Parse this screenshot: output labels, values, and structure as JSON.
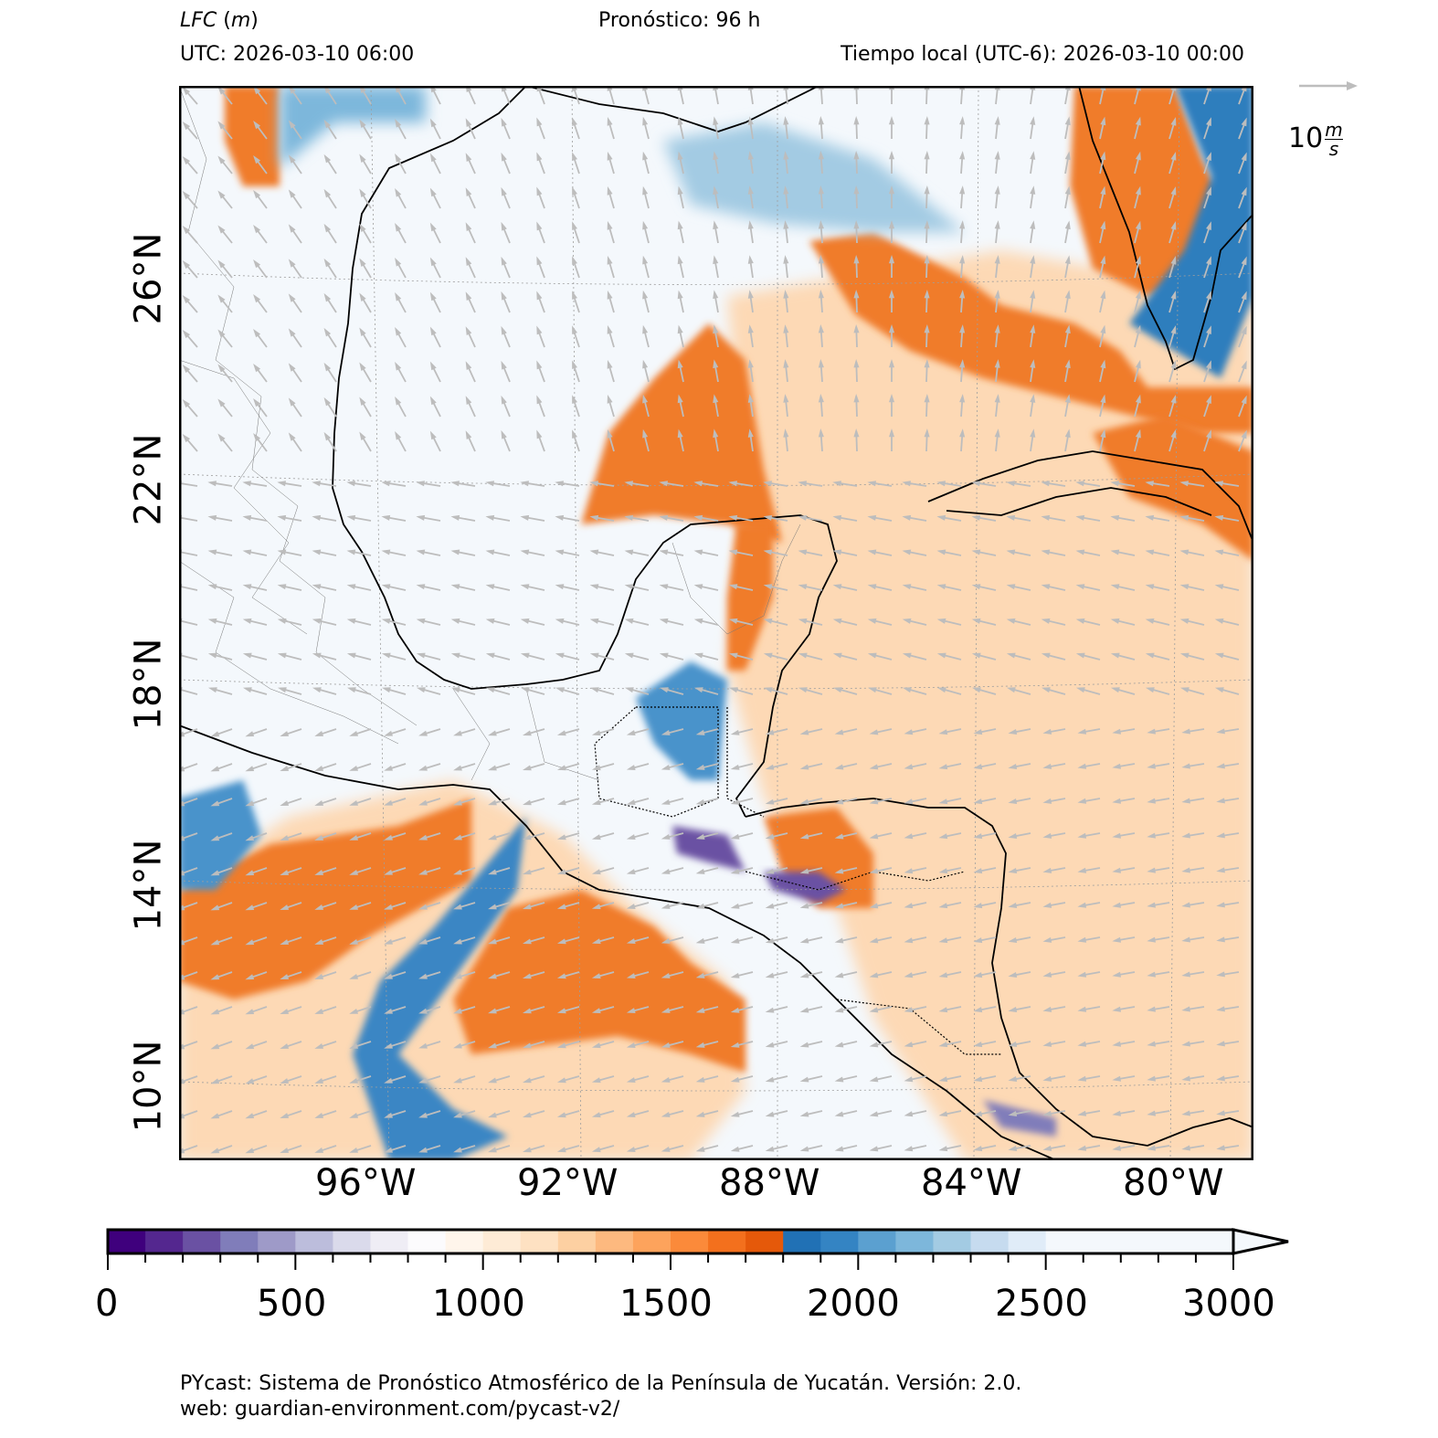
{
  "header": {
    "variable": "LFC",
    "unit": "m",
    "forecast": "Pronóstico: 96 h",
    "utc": "UTC:  2026-03-10 06:00",
    "local": "Tiempo local (UTC-6): 2026-03-10 00:00"
  },
  "wind_key": {
    "value": "10",
    "unit_num": "m",
    "unit_den": "s"
  },
  "map": {
    "lon_labels": [
      "96°W",
      "92°W",
      "88°W",
      "84°W",
      "80°W"
    ],
    "lat_labels": [
      "26°N",
      "22°N",
      "18°N",
      "14°N",
      "10°N"
    ],
    "colors": {
      "purple_dark": "#3f007d",
      "orange": "#e8661a",
      "orange_light": "#fdd0a2",
      "blue": "#2171b5",
      "blue_light": "#c6dbef",
      "background": "#f4f8fc",
      "arrow": "#bdbdbd"
    }
  },
  "colorbar": {
    "ticks": [
      "0",
      "500",
      "1000",
      "1500",
      "2000",
      "2500",
      "3000"
    ],
    "colors": [
      "#3f007d",
      "#54278f",
      "#6a51a3",
      "#807dba",
      "#9e9ac8",
      "#bcbddc",
      "#dadaeb",
      "#efedf5",
      "#fcfbfd",
      "#fff5eb",
      "#feebd6",
      "#fee1c2",
      "#fdd0a2",
      "#fdb97f",
      "#fda35c",
      "#fb8a3a",
      "#f3701d",
      "#e5590a",
      "#2171b5",
      "#3484c3",
      "#5ba0d0",
      "#7db7db",
      "#a3cbe3",
      "#c6dbef",
      "#e0ecf8"
    ]
  },
  "footer": {
    "line1": "PYcast: Sistema de Pronóstico Atmosférico de la Península de Yucatán. Versión: 2.0.",
    "line2": "web: guardian-environment.com/pycast-v2/"
  }
}
